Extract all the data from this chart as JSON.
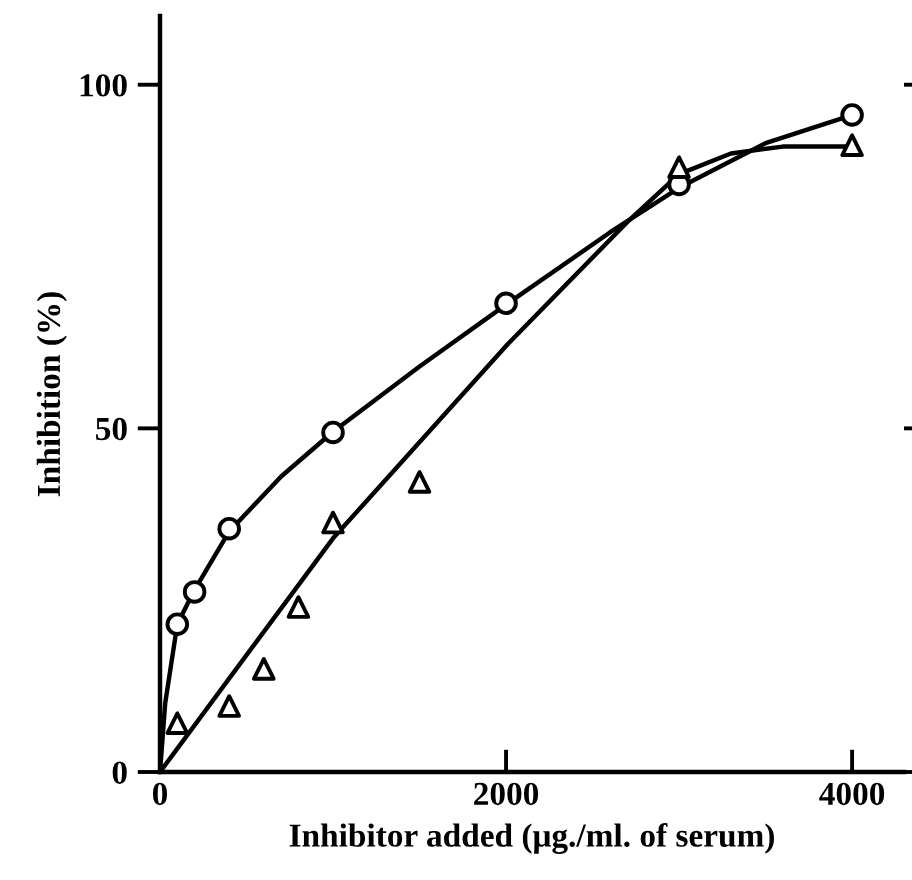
{
  "chart_data": {
    "type": "scatter",
    "xlabel": "Inhibitor added (μg./ml. of serum)",
    "ylabel": "Inhibition (%)",
    "xlim": [
      0,
      4300
    ],
    "ylim": [
      0,
      110
    ],
    "xticks": [
      0,
      2000,
      4000
    ],
    "yticks": [
      0,
      50,
      100
    ],
    "grid": false,
    "legend": false,
    "series": [
      {
        "type": "line",
        "color": "#000000",
        "marker": "none",
        "line_style": "solid",
        "x": [
          0,
          30,
          100,
          200,
          400,
          700,
          1000,
          1500,
          2000,
          2600,
          3000,
          3500,
          4000
        ],
        "values": [
          0,
          10,
          21.5,
          26.5,
          35,
          43,
          49.5,
          59,
          68,
          78.5,
          85,
          91.5,
          95.6
        ]
      },
      {
        "type": "line",
        "color": "#000000",
        "marker": "none",
        "line_style": "solid",
        "x": [
          0,
          1000,
          2000,
          2700,
          3000,
          3300,
          3600,
          4000
        ],
        "values": [
          0,
          34,
          62,
          80,
          87,
          90,
          91,
          91
        ]
      },
      {
        "color": "#000000",
        "marker": "circle",
        "x": [
          100,
          200,
          400,
          1000,
          2000,
          3000,
          4000
        ],
        "values": [
          21.5,
          26.2,
          35.4,
          49.4,
          68.2,
          85.5,
          95.6
        ]
      },
      {
        "color": "#000000",
        "marker": "triangle",
        "x": [
          100,
          400,
          600,
          800,
          1000,
          1500,
          3000,
          4000
        ],
        "values": [
          7.1,
          9.6,
          15,
          24,
          36.3,
          42.2,
          88,
          91.2
        ]
      }
    ]
  }
}
